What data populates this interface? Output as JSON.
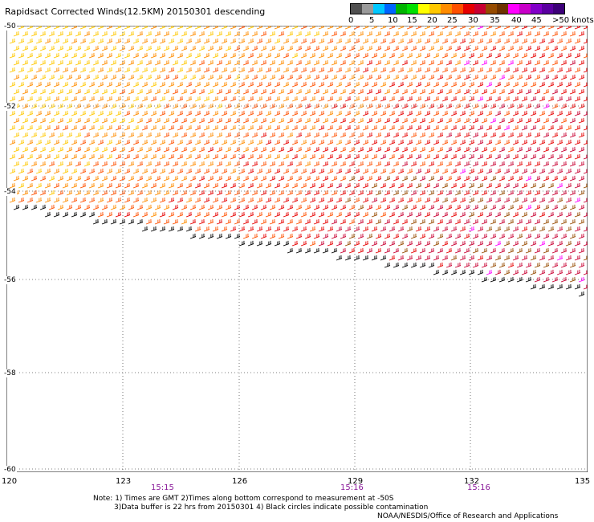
{
  "title": "Rapidsact Corrected Winds(12.5KM) 20150301 descending",
  "legend": {
    "ticks": [
      "0",
      "5",
      "10",
      "15",
      "20",
      "25",
      "30",
      "35",
      "40",
      "45",
      ">50 knots"
    ],
    "colors": [
      "#505050",
      "#9a9a9a",
      "#00c8ff",
      "#0064ff",
      "#00b400",
      "#00e000",
      "#ffff00",
      "#ffc800",
      "#ff8c00",
      "#ff5000",
      "#e60000",
      "#c80032",
      "#964b00",
      "#6e3200",
      "#ff00ff",
      "#c800c8",
      "#8200c8",
      "#5a00a0",
      "#3c0078"
    ]
  },
  "map": {
    "lat_labels": [
      "-50",
      "-52",
      "-54",
      "-56",
      "-58",
      "-60"
    ],
    "lon_labels": [
      "120",
      "123",
      "126",
      "129",
      "132",
      "135"
    ],
    "time_labels": [
      "15:15",
      "15:16",
      "15:16"
    ],
    "wind_palette": [
      "#ffc800",
      "#ff8c00",
      "#ff5000",
      "#e60000",
      "#c80032",
      "#964b00",
      "#ff00ff",
      "#000000"
    ]
  },
  "notes": {
    "line1": "Note: 1) Times are GMT 2)Times along bottom correspond to measurement at -50S",
    "line2": "3)Data buffer is 22 hrs from 20150301 4) Black circles indicate possible contamination",
    "line3": "NOAA/NESDIS/Office of Research and Applications"
  }
}
